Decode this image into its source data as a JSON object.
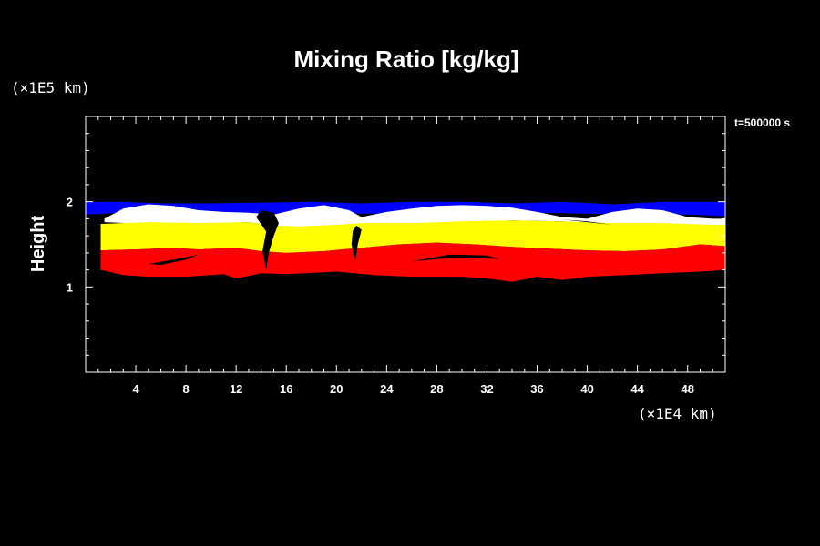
{
  "chart_data": {
    "type": "heatmap",
    "title": "Mixing Ratio [kg/kg]",
    "x_unit": "(×1E4 km)",
    "y_unit": "(×1E5 km)",
    "ylabel": "Height",
    "time_label": "t=500000 s",
    "xlim": [
      0,
      51
    ],
    "ylim": [
      0,
      3
    ],
    "x_ticks": [
      4,
      8,
      12,
      16,
      20,
      24,
      28,
      32,
      36,
      40,
      44,
      48
    ],
    "y_ticks": [
      1,
      2
    ],
    "x_minor_step": 1,
    "y_minor_step": 0.2,
    "background_color": "#000000",
    "layers": [
      {
        "color": "#0000ff",
        "top": [
          [
            0,
            2.0
          ],
          [
            3,
            2.0
          ],
          [
            6,
            1.98
          ],
          [
            10,
            1.98
          ],
          [
            14,
            1.99
          ],
          [
            18,
            2.0
          ],
          [
            22,
            1.98
          ],
          [
            26,
            2.0
          ],
          [
            30,
            2.0
          ],
          [
            34,
            1.98
          ],
          [
            38,
            2.0
          ],
          [
            42,
            1.97
          ],
          [
            46,
            2.0
          ],
          [
            51,
            2.0
          ]
        ],
        "bottom": [
          [
            0,
            1.85
          ],
          [
            4,
            1.88
          ],
          [
            8,
            1.86
          ],
          [
            12,
            1.85
          ],
          [
            16,
            1.85
          ],
          [
            20,
            1.86
          ],
          [
            24,
            1.86
          ],
          [
            28,
            1.85
          ],
          [
            32,
            1.85
          ],
          [
            36,
            1.87
          ],
          [
            40,
            1.86
          ],
          [
            44,
            1.85
          ],
          [
            48,
            1.85
          ],
          [
            51,
            1.83
          ]
        ]
      },
      {
        "color": "#ffffff",
        "top": [
          [
            1.5,
            1.8
          ],
          [
            3,
            1.92
          ],
          [
            5,
            1.97
          ],
          [
            7,
            1.95
          ],
          [
            9,
            1.9
          ],
          [
            11,
            1.88
          ],
          [
            13,
            1.87
          ],
          [
            15,
            1.85
          ],
          [
            17,
            1.92
          ],
          [
            19,
            1.96
          ],
          [
            21,
            1.9
          ],
          [
            22,
            1.82
          ],
          [
            24,
            1.88
          ],
          [
            26,
            1.92
          ],
          [
            28,
            1.95
          ],
          [
            30,
            1.96
          ],
          [
            32,
            1.95
          ],
          [
            34,
            1.93
          ],
          [
            36,
            1.88
          ],
          [
            38,
            1.82
          ],
          [
            40,
            1.8
          ],
          [
            42,
            1.88
          ],
          [
            44,
            1.92
          ],
          [
            46,
            1.9
          ],
          [
            48,
            1.82
          ],
          [
            50,
            1.8
          ],
          [
            51,
            1.8
          ]
        ],
        "bottom": [
          [
            1.5,
            1.76
          ],
          [
            5,
            1.74
          ],
          [
            9,
            1.74
          ],
          [
            13,
            1.76
          ],
          [
            15,
            1.72
          ],
          [
            17,
            1.7
          ],
          [
            20,
            1.72
          ],
          [
            22,
            1.74
          ],
          [
            26,
            1.74
          ],
          [
            30,
            1.76
          ],
          [
            34,
            1.78
          ],
          [
            38,
            1.77
          ],
          [
            42,
            1.74
          ],
          [
            46,
            1.74
          ],
          [
            50,
            1.72
          ],
          [
            51,
            1.72
          ]
        ]
      },
      {
        "color": "#ffff00",
        "top": [
          [
            1.2,
            1.74
          ],
          [
            5,
            1.76
          ],
          [
            9,
            1.75
          ],
          [
            13,
            1.76
          ],
          [
            15,
            1.72
          ],
          [
            17,
            1.71
          ],
          [
            20,
            1.73
          ],
          [
            22,
            1.75
          ],
          [
            26,
            1.75
          ],
          [
            30,
            1.77
          ],
          [
            34,
            1.78
          ],
          [
            38,
            1.77
          ],
          [
            42,
            1.75
          ],
          [
            46,
            1.75
          ],
          [
            50,
            1.73
          ],
          [
            51,
            1.73
          ]
        ],
        "bottom": [
          [
            1.2,
            1.43
          ],
          [
            4,
            1.44
          ],
          [
            7,
            1.46
          ],
          [
            9,
            1.44
          ],
          [
            12,
            1.46
          ],
          [
            14,
            1.42
          ],
          [
            16,
            1.4
          ],
          [
            19,
            1.42
          ],
          [
            22,
            1.46
          ],
          [
            25,
            1.5
          ],
          [
            28,
            1.52
          ],
          [
            31,
            1.5
          ],
          [
            34,
            1.47
          ],
          [
            37,
            1.45
          ],
          [
            40,
            1.43
          ],
          [
            43,
            1.42
          ],
          [
            46,
            1.44
          ],
          [
            49,
            1.5
          ],
          [
            51,
            1.48
          ]
        ]
      },
      {
        "color": "#ff0000",
        "top": [
          [
            1.2,
            1.43
          ],
          [
            4,
            1.44
          ],
          [
            7,
            1.46
          ],
          [
            9,
            1.44
          ],
          [
            12,
            1.46
          ],
          [
            14,
            1.42
          ],
          [
            16,
            1.4
          ],
          [
            19,
            1.42
          ],
          [
            22,
            1.46
          ],
          [
            25,
            1.5
          ],
          [
            28,
            1.52
          ],
          [
            31,
            1.5
          ],
          [
            34,
            1.47
          ],
          [
            37,
            1.45
          ],
          [
            40,
            1.43
          ],
          [
            43,
            1.42
          ],
          [
            46,
            1.44
          ],
          [
            49,
            1.5
          ],
          [
            51,
            1.48
          ]
        ],
        "bottom": [
          [
            1.2,
            1.2
          ],
          [
            3,
            1.14
          ],
          [
            5,
            1.12
          ],
          [
            8,
            1.12
          ],
          [
            11,
            1.15
          ],
          [
            12,
            1.1
          ],
          [
            14,
            1.16
          ],
          [
            16,
            1.15
          ],
          [
            20,
            1.18
          ],
          [
            23,
            1.14
          ],
          [
            26,
            1.12
          ],
          [
            30,
            1.12
          ],
          [
            32,
            1.1
          ],
          [
            34,
            1.06
          ],
          [
            36,
            1.12
          ],
          [
            38,
            1.08
          ],
          [
            40,
            1.12
          ],
          [
            43,
            1.14
          ],
          [
            46,
            1.16
          ],
          [
            49,
            1.18
          ],
          [
            51,
            1.2
          ]
        ]
      }
    ],
    "dark_features": [
      {
        "color": "#000000",
        "path": [
          [
            14,
            1.9
          ],
          [
            15,
            1.87
          ],
          [
            15.4,
            1.75
          ],
          [
            15,
            1.6
          ],
          [
            14.6,
            1.4
          ],
          [
            14.4,
            1.2
          ],
          [
            14.1,
            1.42
          ],
          [
            14.4,
            1.65
          ],
          [
            13.6,
            1.82
          ]
        ]
      },
      {
        "color": "#000000",
        "path": [
          [
            21.6,
            1.72
          ],
          [
            22,
            1.67
          ],
          [
            21.7,
            1.5
          ],
          [
            21.5,
            1.3
          ],
          [
            21.2,
            1.5
          ],
          [
            21.3,
            1.66
          ]
        ]
      },
      {
        "color": "#000000",
        "path": [
          [
            26,
            1.3
          ],
          [
            29,
            1.38
          ],
          [
            32,
            1.37
          ],
          [
            33,
            1.33
          ],
          [
            29,
            1.34
          ]
        ]
      },
      {
        "color": "#000000",
        "path": [
          [
            5,
            1.27
          ],
          [
            7,
            1.32
          ],
          [
            9,
            1.38
          ],
          [
            8,
            1.32
          ],
          [
            6,
            1.26
          ]
        ]
      },
      {
        "color": "#000000",
        "path": [
          [
            38,
            1.79
          ],
          [
            40,
            1.76
          ],
          [
            42,
            1.73
          ],
          [
            40,
            1.77
          ]
        ]
      }
    ]
  }
}
